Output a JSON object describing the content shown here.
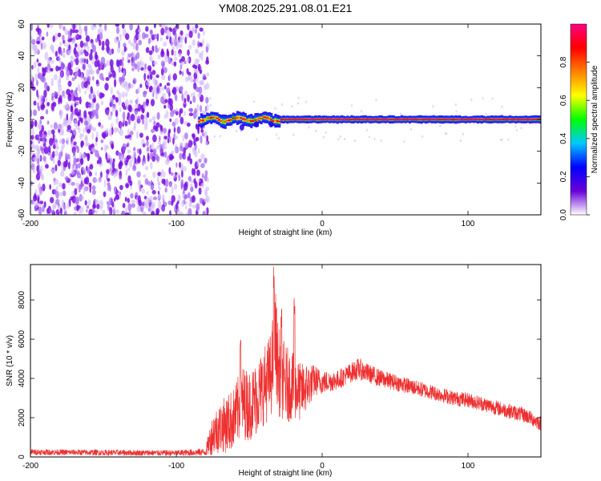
{
  "figure": {
    "title": "YM08.2025.291.08.01.E21"
  },
  "chart_data": [
    {
      "type": "heatmap",
      "xlabel": "Height of straight line (km)",
      "ylabel": "Frequency (Hz)",
      "xlim": [
        -200,
        150
      ],
      "ylim": [
        -60,
        60
      ],
      "xticks": [
        "-200",
        "-100",
        "0",
        "100"
      ],
      "yticks": [
        "-60",
        "-40",
        "-20",
        "0",
        "20",
        "40",
        "60"
      ],
      "grid": false,
      "colorbar": {
        "label": "Normalized spectral amplitude",
        "range": [
          0,
          1
        ],
        "ticks": [
          "0.0",
          "0.2",
          "0.4",
          "0.6",
          "0.8"
        ],
        "colors": [
          "#ffffff",
          "#6a00d8",
          "#0000ff",
          "#00c8ff",
          "#00ff00",
          "#ffff00",
          "#ff8000",
          "#ff0000",
          "#ff0080"
        ]
      },
      "regions": [
        {
          "x": [
            -200,
            -80
          ],
          "y": [
            -60,
            60
          ],
          "amplitude": [
            0.1,
            0.3
          ],
          "pattern": "broadband noise"
        },
        {
          "x": [
            -85,
            -30
          ],
          "y": [
            -5,
            5
          ],
          "amplitude": [
            0.4,
            0.9
          ],
          "pattern": "narrow band near 0 Hz"
        },
        {
          "x": [
            -30,
            150
          ],
          "y": [
            -2,
            2
          ],
          "amplitude": [
            0.8,
            1.0
          ],
          "pattern": "narrow band at 0 Hz"
        }
      ]
    },
    {
      "type": "line",
      "xlabel": "Height of straight line (km)",
      "ylabel": "SNR (10 * v/v)",
      "xlim": [
        -200,
        150
      ],
      "ylim": [
        0,
        9800
      ],
      "xticks": [
        "-200",
        "-100",
        "0",
        "100"
      ],
      "yticks": [
        "0",
        "2000",
        "4000",
        "6000",
        "8000"
      ],
      "grid": false,
      "color": "#ee3030",
      "envelope": {
        "x": [
          -200,
          -150,
          -100,
          -80,
          -75,
          -70,
          -65,
          -60,
          -55,
          -50,
          -45,
          -40,
          -35,
          -32,
          -30,
          -25,
          -20,
          -15,
          -10,
          -5,
          0,
          10,
          20,
          25,
          30,
          40,
          50,
          60,
          70,
          80,
          90,
          100,
          110,
          120,
          130,
          140,
          150
        ],
        "mean": [
          250,
          220,
          200,
          250,
          1200,
          1500,
          1700,
          2000,
          2800,
          2600,
          3000,
          3600,
          4200,
          6000,
          4400,
          3700,
          3600,
          3300,
          3600,
          3900,
          3800,
          3900,
          4300,
          4500,
          4300,
          4000,
          3800,
          3600,
          3400,
          3200,
          3000,
          2900,
          2700,
          2500,
          2300,
          2100,
          1700
        ],
        "amp": [
          150,
          150,
          150,
          200,
          1100,
          1300,
          1500,
          1600,
          1900,
          1800,
          1900,
          2000,
          2200,
          2600,
          2300,
          2000,
          1700,
          1500,
          1200,
          800,
          600,
          500,
          500,
          550,
          500,
          450,
          420,
          400,
          400,
          380,
          380,
          380,
          380,
          380,
          380,
          380,
          380
        ]
      },
      "peaks": [
        {
          "x": -33,
          "y": 9800
        },
        {
          "x": -19,
          "y": 8400
        },
        {
          "x": -28,
          "y": 7600
        },
        {
          "x": -56,
          "y": 6500
        }
      ]
    }
  ]
}
